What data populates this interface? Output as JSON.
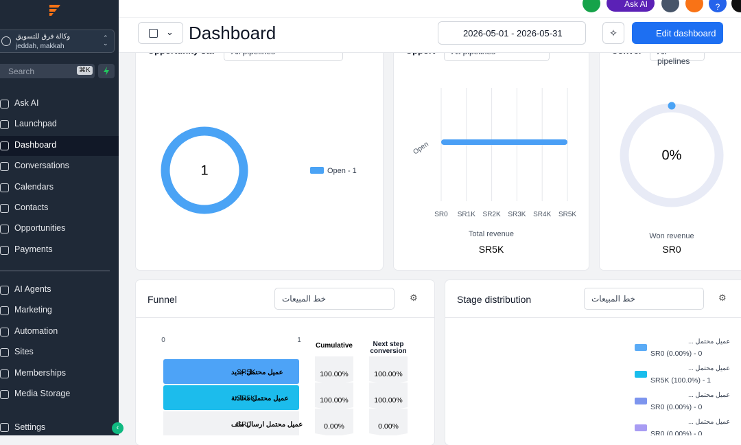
{
  "sidebar": {
    "account": {
      "name": "وكالة فرق للتسويق",
      "location": "jeddah, makkah"
    },
    "search": "Search",
    "shortcut": "⌘K",
    "nav": [
      "Ask AI",
      "Launchpad",
      "Dashboard",
      "Conversations",
      "Calendars",
      "Contacts",
      "Opportunities",
      "Payments"
    ],
    "nav2": [
      "AI Agents",
      "Marketing",
      "Automation",
      "Sites",
      "Memberships",
      "Media Storage"
    ],
    "settings": "Settings"
  },
  "topbar": {
    "ask_ai": "Ask AI",
    "help": "?"
  },
  "header": {
    "title": "Dashboard",
    "date_range": "2026-05-01 - 2026-05-31",
    "edit": "Edit dashboard"
  },
  "status_card": {
    "title": "Opportunity sta",
    "select": "All pipelines",
    "center": "1",
    "legend": "Open - 1"
  },
  "value_card": {
    "title": "Opport",
    "select": "All pipelines",
    "categories": [
      "Open"
    ],
    "values": [
      5000
    ],
    "xlim": [
      0,
      5000
    ],
    "xticks": [
      {
        "value": 0,
        "label": "SR0"
      },
      {
        "value": 1000,
        "label": "SR1K"
      },
      {
        "value": 2000,
        "label": "SR2K"
      },
      {
        "value": 3000,
        "label": "SR3K"
      },
      {
        "value": 4000,
        "label": "SR4K"
      },
      {
        "value": 5000,
        "label": "SR5K"
      }
    ],
    "total_label": "Total revenue",
    "total": "SR5K"
  },
  "conversion_card": {
    "title": "Conver",
    "select": "All pipelines",
    "center": "0%",
    "won_label": "Won revenue",
    "won": "SR0"
  },
  "funnel": {
    "title": "Funnel",
    "select": "خط المبيعات",
    "xlim": [
      0,
      1
    ],
    "xticks": [
      0,
      1
    ],
    "col_cumulative": "Cumulative",
    "col_next": "Next step conversion",
    "rows": [
      {
        "name": "عميل محتمل جديد",
        "count": 1,
        "value": "SR5K",
        "cumulative": "100.00%",
        "next": "100.00%"
      },
      {
        "name": "عميل محتمل محادثة",
        "count": 1,
        "value": "SR5K",
        "cumulative": "100.00%",
        "next": "100.00%"
      },
      {
        "name": "عميل محتمل ارسال ملف",
        "count": 0,
        "value": "SR0",
        "cumulative": "0.00%",
        "next": "0.00%"
      }
    ]
  },
  "stage": {
    "title": "Stage distribution",
    "select": "خط المبيعات",
    "legend": [
      {
        "name": "عميل محتمل ...",
        "detail": "SR0 (0.00%) - 0",
        "color": "#5aabf6"
      },
      {
        "name": "عميل محتمل ...",
        "detail": "SR5K (100.0%) - 1",
        "color": "#19bdec"
      },
      {
        "name": "عميل محتمل ...",
        "detail": "SR0 (0.00%) - 0",
        "color": "#7d95ee"
      },
      {
        "name": "عميل محتمل ...",
        "detail": "SR0 (0.00%) - 0",
        "color": "#a89cf3"
      }
    ]
  }
}
